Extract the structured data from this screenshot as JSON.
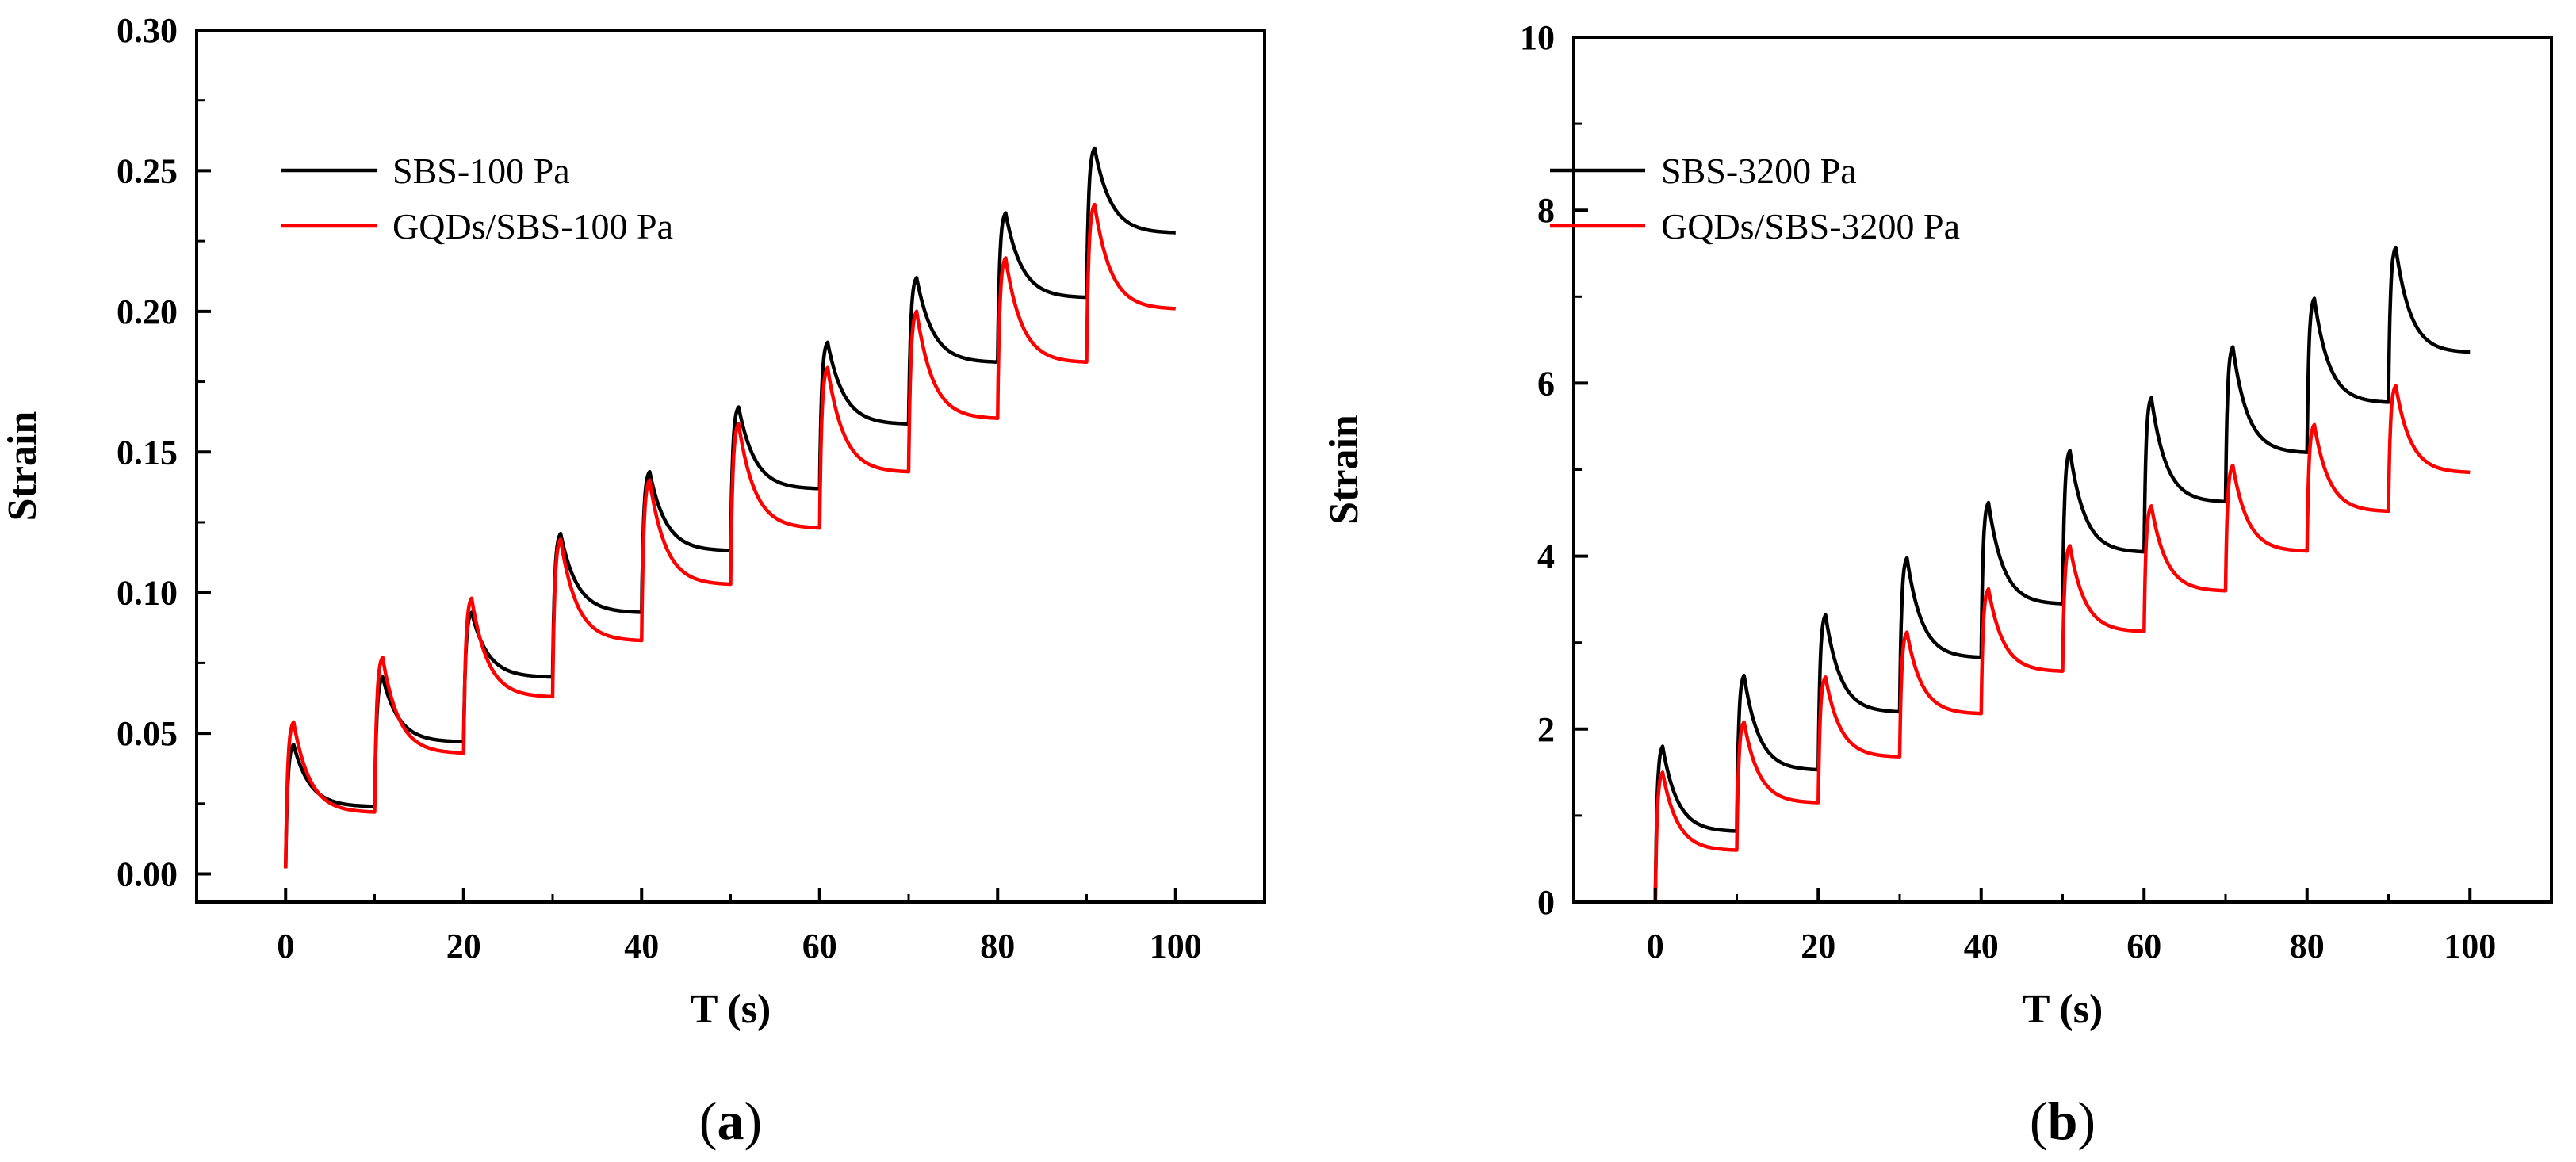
{
  "chart_data": [
    {
      "type": "line",
      "panel_label": "a",
      "xlabel": "T (s)",
      "ylabel": "Strain",
      "xlim": [
        -10,
        110
      ],
      "ylim": [
        -0.01,
        0.3
      ],
      "xticks": [
        0,
        20,
        40,
        60,
        80,
        100
      ],
      "xtick_labels": [
        "0",
        "20",
        "40",
        "60",
        "80",
        "100"
      ],
      "yticks": [
        0.0,
        0.05,
        0.1,
        0.15,
        0.2,
        0.25,
        0.3
      ],
      "ytick_labels": [
        "0.00",
        "0.05",
        "0.10",
        "0.15",
        "0.20",
        "0.25",
        "0.30"
      ],
      "legend_position": "top-left",
      "series": [
        {
          "name": "SBS-100 Pa",
          "color": "#000000",
          "start": 0.002,
          "peaks": [
            0.046,
            0.07,
            0.093,
            0.121,
            0.143,
            0.166,
            0.189,
            0.212,
            0.235,
            0.258
          ],
          "valleys": [
            0.024,
            0.047,
            0.07,
            0.093,
            0.115,
            0.137,
            0.16,
            0.182,
            0.205,
            0.228
          ]
        },
        {
          "name": "GQDs/SBS-100 Pa",
          "color": "#ff0000",
          "start": 0.002,
          "peaks": [
            0.054,
            0.077,
            0.098,
            0.119,
            0.14,
            0.16,
            0.18,
            0.2,
            0.219,
            0.238
          ],
          "valleys": [
            0.022,
            0.043,
            0.063,
            0.083,
            0.103,
            0.123,
            0.143,
            0.162,
            0.182,
            0.201
          ]
        }
      ]
    },
    {
      "type": "line",
      "panel_label": "b",
      "xlabel": "T (s)",
      "ylabel": "Strain",
      "xlim": [
        -10,
        110
      ],
      "ylim": [
        0,
        10
      ],
      "xticks": [
        0,
        20,
        40,
        60,
        80,
        100
      ],
      "xtick_labels": [
        "0",
        "20",
        "40",
        "60",
        "80",
        "100"
      ],
      "yticks": [
        0,
        2,
        4,
        6,
        8,
        10
      ],
      "ytick_labels": [
        "0",
        "2",
        "4",
        "6",
        "8",
        "10"
      ],
      "legend_position": "top-left",
      "series": [
        {
          "name": "SBS-3200 Pa",
          "color": "#000000",
          "start": 0.0,
          "peaks": [
            1.8,
            2.62,
            3.32,
            3.98,
            4.62,
            5.22,
            5.83,
            6.42,
            6.98,
            7.57
          ],
          "valleys": [
            0.82,
            1.53,
            2.2,
            2.83,
            3.45,
            4.05,
            4.63,
            5.2,
            5.78,
            6.36
          ]
        },
        {
          "name": "GQDs/SBS-3200 Pa",
          "color": "#ff0000",
          "start": 0.0,
          "peaks": [
            1.5,
            2.08,
            2.6,
            3.12,
            3.62,
            4.12,
            4.58,
            5.05,
            5.52,
            5.97
          ],
          "valleys": [
            0.6,
            1.15,
            1.68,
            2.18,
            2.67,
            3.13,
            3.6,
            4.06,
            4.52,
            4.97
          ]
        }
      ]
    }
  ]
}
